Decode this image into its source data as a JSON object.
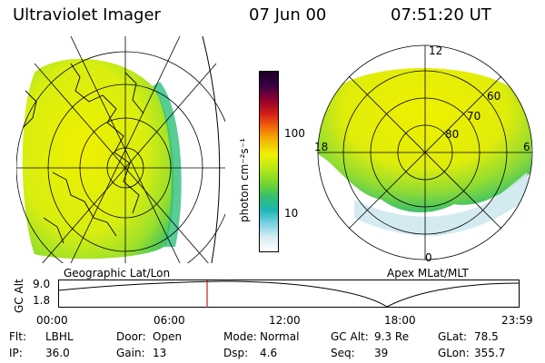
{
  "header": {
    "instrument": "Ultraviolet Imager",
    "date": "07 Jun 00",
    "time": "07:51:20 UT"
  },
  "left_panel": {
    "caption": "Geographic Lat/Lon"
  },
  "right_panel": {
    "caption": "Apex MLat/MLT",
    "mlt_labels": {
      "noon": "12",
      "dusk": "18",
      "dawn": "6",
      "midnight": "0"
    },
    "lat_labels": [
      "60",
      "70",
      "80"
    ]
  },
  "colorbar": {
    "label": "photon cm⁻²s⁻¹",
    "ticks": [
      "100",
      "10"
    ],
    "colors": [
      "#1a0022",
      "#3a0044",
      "#8a0030",
      "#d11a1a",
      "#f26a0a",
      "#f4b400",
      "#f0f000",
      "#b8e817",
      "#77d62c",
      "#38c06a",
      "#1cb6b6",
      "#7fd4e6",
      "#d7ecf2",
      "#ffffff"
    ]
  },
  "timeline": {
    "axis_label": "GC Alt",
    "y_ticks": [
      "9.0",
      "1.8"
    ],
    "x_ticks": [
      "00:00",
      "06:00",
      "12:00",
      "18:00",
      "23:59"
    ],
    "marker_time": "07:51:20"
  },
  "info": {
    "row1": [
      {
        "label": "Flt:",
        "value": "LBHL"
      },
      {
        "label": "Door:",
        "value": "Open"
      },
      {
        "label": "Mode:",
        "value": "Normal"
      },
      {
        "label": "GC Alt:",
        "value": "9.3 Re"
      },
      {
        "label": "GLat:",
        "value": "78.5"
      }
    ],
    "row2": [
      {
        "label": "IP:",
        "value": "36.0"
      },
      {
        "label": "Gain:",
        "value": "13"
      },
      {
        "label": "Dsp:",
        "value": "4.6"
      },
      {
        "label": "Seq:",
        "value": "39"
      },
      {
        "label": "GLon:",
        "value": "355.7"
      }
    ]
  }
}
